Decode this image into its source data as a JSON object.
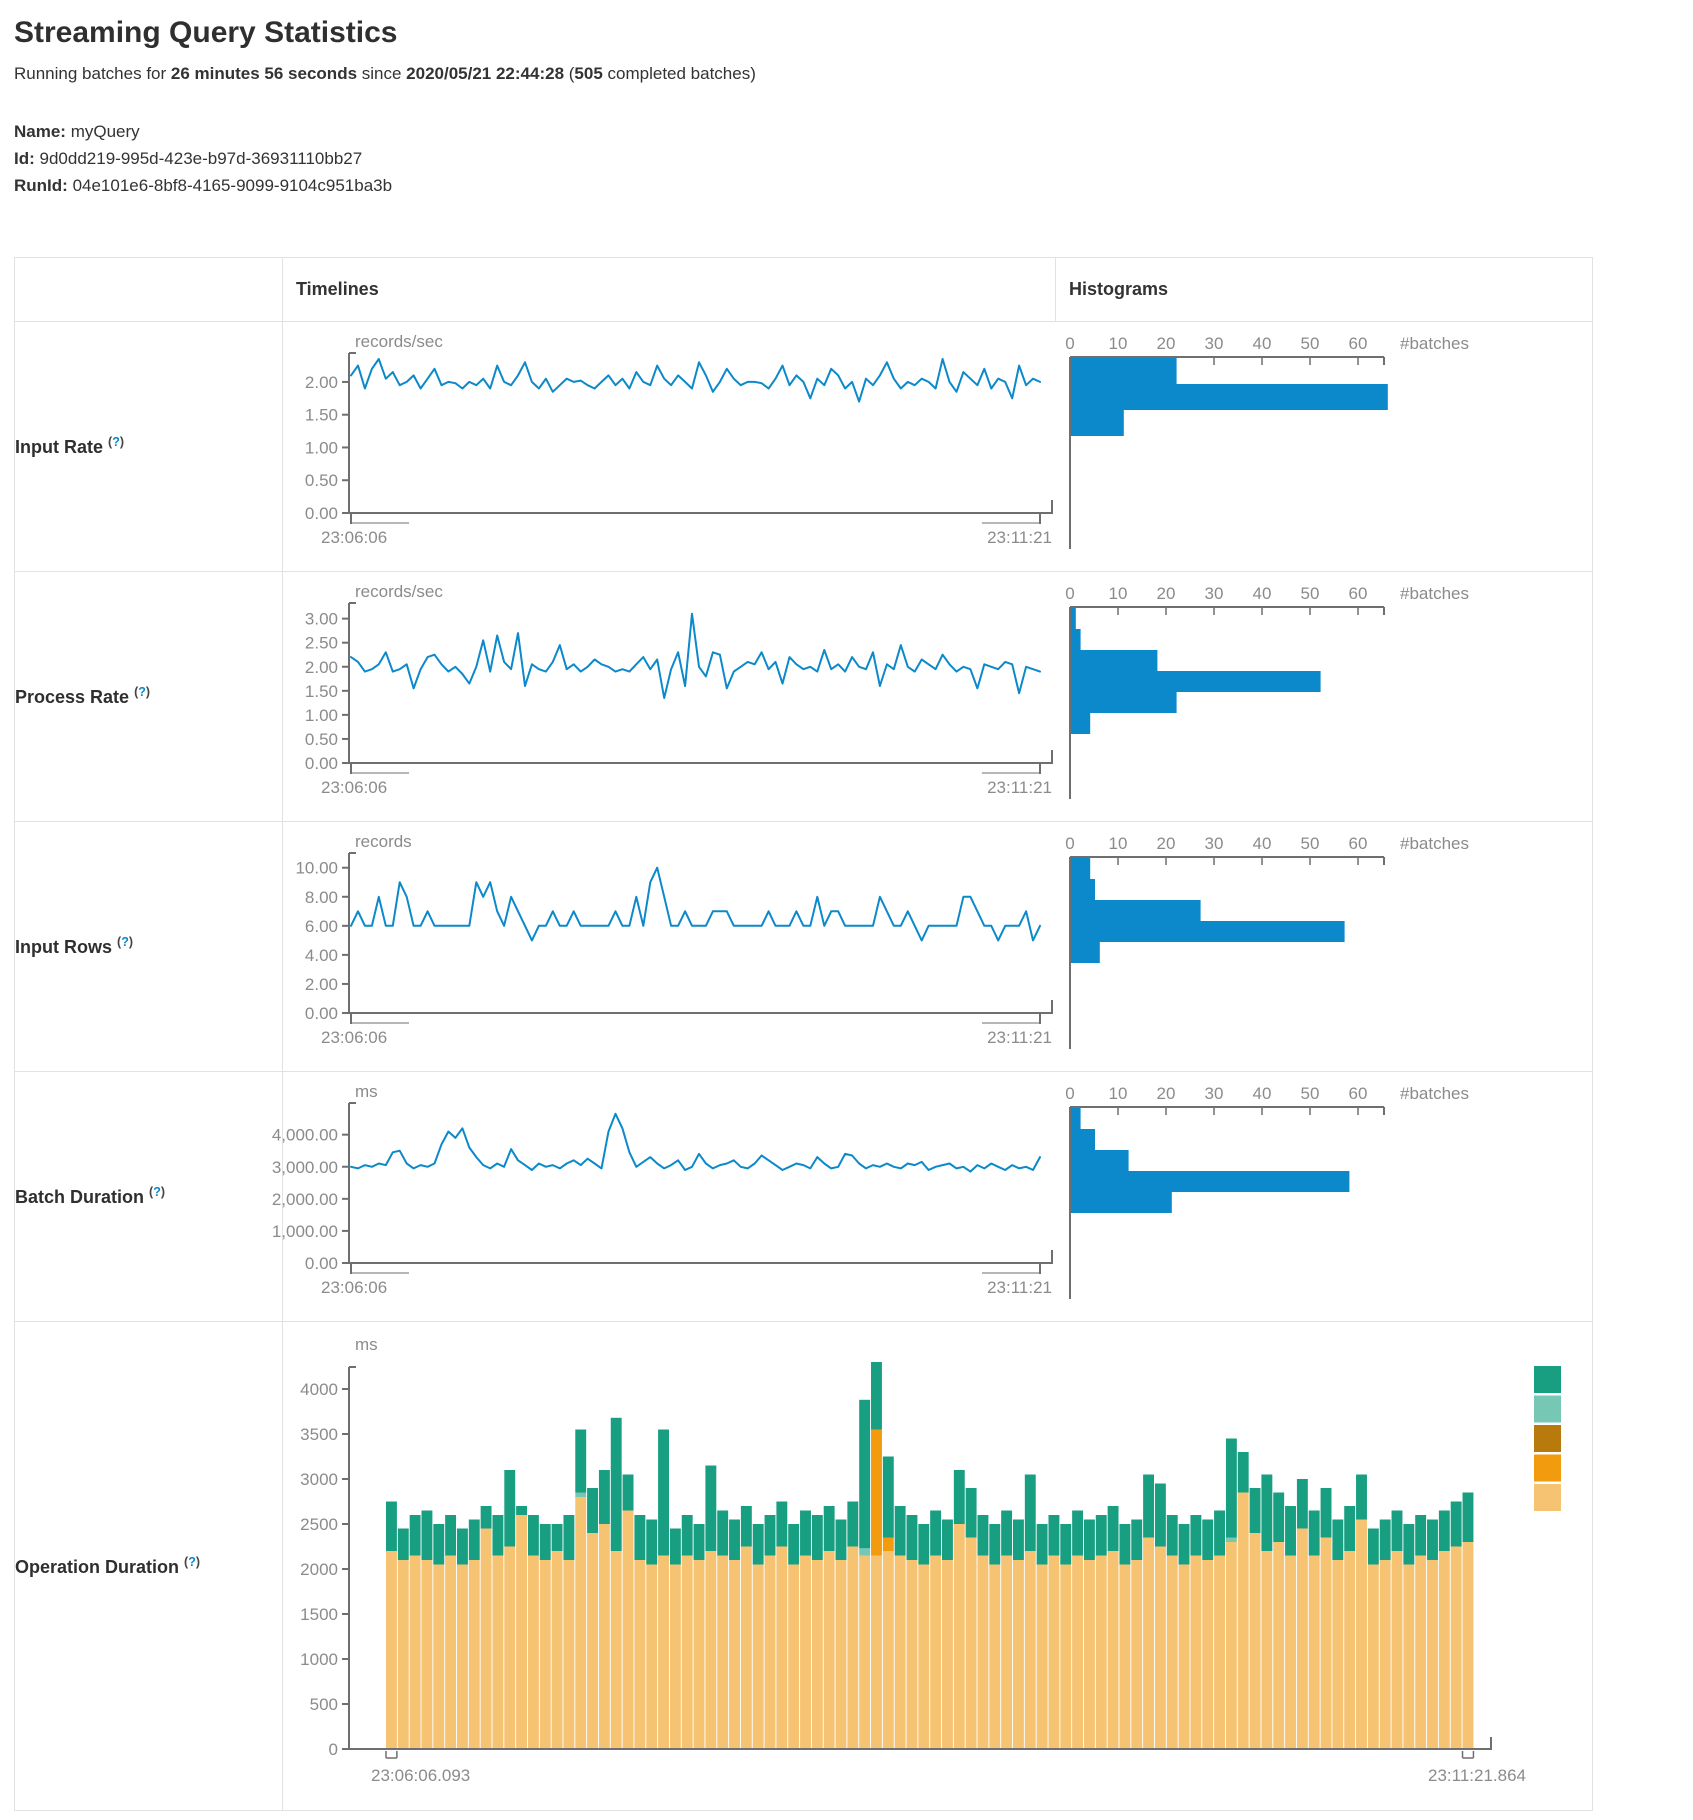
{
  "page": {
    "title": "Streaming Query Statistics",
    "subtitle_prefix": "Running batches for ",
    "duration": "26 minutes 56 seconds",
    "since_word": " since ",
    "start_time": "2020/05/21 22:44:28",
    "batches_open": " (",
    "completed_batches": "505",
    "batches_suffix": " completed batches)",
    "name_label": "Name:",
    "name_value": "myQuery",
    "id_label": "Id:",
    "id_value": "9d0dd219-995d-423e-b97d-36931110bb27",
    "runid_label": "RunId:",
    "runid_value": "04e101e6-8bf8-4165-9099-9104c951ba3b"
  },
  "table": {
    "col_timelines": "Timelines",
    "col_histograms": "Histograms",
    "help_open": "(",
    "help_q": "?",
    "help_close": ")"
  },
  "colors": {
    "line_blue": "#0b89ca",
    "hist_blue": "#0b89ca",
    "teal": "#189e81",
    "light_teal": "#76c7b4",
    "dark_orange": "#b8790d",
    "orange": "#f29b0f",
    "tan": "#f6c373",
    "axis": "#6f6f6f",
    "tick_text": "#8b8b8b"
  },
  "chart_data": [
    {
      "row": "Input Rate",
      "timeline": {
        "type": "line",
        "unit": "records/sec",
        "ymax": 2.35,
        "ytick_values": [
          2,
          1.5,
          1,
          0.5,
          0
        ],
        "ytick_labels": [
          "2.00",
          "1.50",
          "1.00",
          "0.50",
          "0.00"
        ],
        "x_start": "23:06:06",
        "x_end": "23:11:21",
        "values": [
          2.1,
          2.25,
          1.9,
          2.2,
          2.35,
          2.05,
          2.15,
          1.95,
          2.0,
          2.1,
          1.9,
          2.05,
          2.2,
          1.95,
          2.0,
          1.98,
          1.9,
          2.0,
          1.95,
          2.05,
          1.9,
          2.25,
          2.0,
          1.95,
          2.1,
          2.3,
          2.0,
          1.9,
          2.05,
          1.85,
          1.95,
          2.05,
          2.0,
          2.02,
          1.95,
          1.9,
          2.0,
          2.1,
          1.95,
          2.05,
          1.9,
          2.15,
          2.0,
          1.95,
          2.25,
          2.05,
          1.95,
          2.1,
          2.0,
          1.9,
          2.3,
          2.1,
          1.85,
          2.0,
          2.2,
          2.05,
          1.95,
          2.0,
          2.0,
          1.98,
          1.9,
          2.05,
          2.25,
          1.95,
          2.1,
          2.0,
          1.75,
          2.05,
          1.95,
          2.2,
          2.1,
          1.9,
          2.0,
          1.7,
          2.05,
          1.95,
          2.1,
          2.3,
          2.05,
          1.9,
          2.0,
          1.95,
          2.05,
          2.0,
          1.9,
          2.35,
          2.0,
          1.85,
          2.15,
          2.05,
          1.95,
          2.2,
          1.9,
          2.05,
          2.0,
          1.75,
          2.25,
          1.95,
          2.05,
          2.0
        ]
      },
      "histogram": {
        "type": "bar",
        "unit": "#batches",
        "ticks": [
          0,
          10,
          20,
          30,
          40,
          50,
          60
        ],
        "bars": [
          22,
          66,
          11
        ]
      }
    },
    {
      "row": "Process Rate",
      "timeline": {
        "type": "line",
        "unit": "records/sec",
        "ymax": 3.2,
        "ytick_values": [
          3,
          2.5,
          2,
          1.5,
          1,
          0.5,
          0
        ],
        "ytick_labels": [
          "3.00",
          "2.50",
          "2.00",
          "1.50",
          "1.00",
          "0.50",
          "0.00"
        ],
        "x_start": "23:06:06",
        "x_end": "23:11:21",
        "values": [
          2.2,
          2.1,
          1.9,
          1.95,
          2.05,
          2.3,
          1.9,
          1.95,
          2.05,
          1.55,
          1.95,
          2.2,
          2.25,
          2.05,
          1.9,
          2.0,
          1.85,
          1.65,
          2.0,
          2.55,
          1.9,
          2.65,
          2.1,
          1.95,
          2.7,
          1.6,
          2.05,
          1.95,
          1.9,
          2.1,
          2.45,
          1.95,
          2.05,
          1.9,
          2.0,
          2.15,
          2.05,
          2.0,
          1.9,
          1.95,
          1.9,
          2.05,
          2.2,
          1.95,
          2.15,
          1.35,
          1.95,
          2.3,
          1.6,
          3.1,
          2.0,
          1.8,
          2.3,
          2.25,
          1.55,
          1.9,
          2.0,
          2.1,
          2.05,
          2.3,
          1.95,
          2.1,
          1.65,
          2.2,
          2.05,
          1.95,
          2.0,
          1.9,
          2.35,
          1.95,
          2.05,
          1.9,
          2.2,
          2.0,
          1.95,
          2.3,
          1.6,
          2.05,
          1.95,
          2.45,
          2.0,
          1.9,
          2.15,
          2.05,
          1.95,
          2.25,
          2.05,
          1.9,
          2.0,
          1.95,
          1.55,
          2.05,
          2.0,
          1.95,
          2.1,
          2.05,
          1.45,
          2.0,
          1.95,
          1.9
        ]
      },
      "histogram": {
        "type": "bar",
        "unit": "#batches",
        "ticks": [
          0,
          10,
          20,
          30,
          40,
          50,
          60
        ],
        "bars": [
          1,
          2,
          18,
          52,
          22,
          4
        ]
      }
    },
    {
      "row": "Input Rows",
      "timeline": {
        "type": "line",
        "unit": "records",
        "ymax": 10.6,
        "ytick_values": [
          10,
          8,
          6,
          4,
          2,
          0
        ],
        "ytick_labels": [
          "10.00",
          "8.00",
          "6.00",
          "4.00",
          "2.00",
          "0.00"
        ],
        "x_start": "23:06:06",
        "x_end": "23:11:21",
        "values": [
          6,
          7,
          6,
          6,
          8,
          6,
          6,
          9,
          8,
          6,
          6,
          7,
          6,
          6,
          6,
          6,
          6,
          6,
          9,
          8,
          9,
          7,
          6,
          8,
          7,
          6,
          5,
          6,
          6,
          7,
          6,
          6,
          7,
          6,
          6,
          6,
          6,
          6,
          7,
          6,
          6,
          8,
          6,
          9,
          10,
          8,
          6,
          6,
          7,
          6,
          6,
          6,
          7,
          7,
          7,
          6,
          6,
          6,
          6,
          6,
          7,
          6,
          6,
          6,
          7,
          6,
          6,
          8,
          6,
          7,
          7,
          6,
          6,
          6,
          6,
          6,
          8,
          7,
          6,
          6,
          7,
          6,
          5,
          6,
          6,
          6,
          6,
          6,
          8,
          8,
          7,
          6,
          6,
          5,
          6,
          6,
          6,
          7,
          5,
          6
        ]
      },
      "histogram": {
        "type": "bar",
        "unit": "#batches",
        "ticks": [
          0,
          10,
          20,
          30,
          40,
          50,
          60
        ],
        "bars": [
          4,
          5,
          27,
          57,
          6
        ]
      }
    },
    {
      "row": "Batch Duration",
      "timeline": {
        "type": "line",
        "unit": "ms",
        "ymax": 4800,
        "ytick_values": [
          4000,
          3000,
          2000,
          1000,
          0
        ],
        "ytick_labels": [
          "4,000.00",
          "3,000.00",
          "2,000.00",
          "1,000.00",
          "0.00"
        ],
        "x_start": "23:06:06",
        "x_end": "23:11:21",
        "values": [
          3000,
          2950,
          3050,
          3000,
          3100,
          3050,
          3450,
          3500,
          3100,
          2950,
          3050,
          3000,
          3100,
          3700,
          4100,
          3900,
          4200,
          3600,
          3300,
          3050,
          2950,
          3100,
          3000,
          3550,
          3200,
          3050,
          2900,
          3100,
          3000,
          3050,
          2950,
          3100,
          3200,
          3050,
          3250,
          3100,
          2950,
          4100,
          4650,
          4200,
          3450,
          3000,
          3150,
          3300,
          3100,
          2950,
          3050,
          3200,
          2900,
          3000,
          3400,
          3100,
          2950,
          3050,
          3100,
          3200,
          3000,
          2950,
          3100,
          3350,
          3200,
          3050,
          2900,
          3000,
          3100,
          3050,
          2950,
          3300,
          3100,
          2950,
          3000,
          3400,
          3350,
          3100,
          2950,
          3050,
          3000,
          3100,
          3000,
          2950,
          3100,
          3050,
          3150,
          2900,
          3000,
          3050,
          3100,
          2950,
          3000,
          2850,
          3050,
          2950,
          3100,
          3000,
          2900,
          3050,
          2950,
          3000,
          2900,
          3300
        ]
      },
      "histogram": {
        "type": "bar",
        "unit": "#batches",
        "ticks": [
          0,
          10,
          20,
          30,
          40,
          50,
          60
        ],
        "bars": [
          2,
          5,
          12,
          58,
          21
        ]
      }
    },
    {
      "row": "Operation Duration",
      "timeline": {
        "type": "stacked_bar",
        "unit": "ms",
        "ytick_values": [
          4000,
          3500,
          3000,
          2500,
          2000,
          1500,
          1000,
          500,
          0
        ],
        "ytick_labels": [
          "4000",
          "3500",
          "3000",
          "2500",
          "2000",
          "1500",
          "1000",
          "500",
          "0"
        ],
        "x_start": "23:06:06.093",
        "x_end": "23:11:21.864",
        "stack_order": [
          "tan",
          "orange",
          "light_teal",
          "teal"
        ],
        "legend": [
          "teal",
          "light_teal",
          "dark_orange",
          "orange",
          "tan"
        ],
        "bars": [
          [
            2200,
            0,
            0,
            550
          ],
          [
            2100,
            0,
            0,
            350
          ],
          [
            2150,
            0,
            0,
            450
          ],
          [
            2100,
            0,
            0,
            550
          ],
          [
            2050,
            0,
            0,
            450
          ],
          [
            2150,
            0,
            0,
            450
          ],
          [
            2050,
            0,
            0,
            400
          ],
          [
            2100,
            0,
            0,
            450
          ],
          [
            2450,
            0,
            0,
            250
          ],
          [
            2150,
            0,
            0,
            450
          ],
          [
            2250,
            0,
            0,
            850
          ],
          [
            2600,
            0,
            0,
            100
          ],
          [
            2150,
            0,
            0,
            450
          ],
          [
            2100,
            0,
            0,
            400
          ],
          [
            2200,
            0,
            0,
            300
          ],
          [
            2100,
            0,
            0,
            500
          ],
          [
            2800,
            0,
            50,
            700
          ],
          [
            2400,
            0,
            0,
            500
          ],
          [
            2500,
            0,
            0,
            600
          ],
          [
            2200,
            0,
            0,
            1480
          ],
          [
            2650,
            0,
            0,
            400
          ],
          [
            2100,
            0,
            0,
            500
          ],
          [
            2050,
            0,
            0,
            500
          ],
          [
            2150,
            0,
            0,
            1400
          ],
          [
            2050,
            0,
            0,
            400
          ],
          [
            2150,
            0,
            0,
            450
          ],
          [
            2100,
            0,
            0,
            400
          ],
          [
            2200,
            0,
            0,
            950
          ],
          [
            2150,
            0,
            0,
            500
          ],
          [
            2100,
            0,
            0,
            450
          ],
          [
            2250,
            0,
            0,
            450
          ],
          [
            2050,
            0,
            0,
            450
          ],
          [
            2150,
            0,
            0,
            450
          ],
          [
            2250,
            0,
            0,
            500
          ],
          [
            2050,
            0,
            0,
            450
          ],
          [
            2150,
            0,
            0,
            500
          ],
          [
            2100,
            0,
            0,
            500
          ],
          [
            2200,
            0,
            0,
            500
          ],
          [
            2100,
            0,
            0,
            450
          ],
          [
            2250,
            0,
            0,
            500
          ],
          [
            2150,
            0,
            80,
            1650
          ],
          [
            2150,
            1400,
            0,
            750
          ],
          [
            2200,
            150,
            0,
            900
          ],
          [
            2150,
            0,
            0,
            550
          ],
          [
            2100,
            0,
            0,
            500
          ],
          [
            2050,
            0,
            0,
            450
          ],
          [
            2150,
            0,
            0,
            500
          ],
          [
            2100,
            0,
            0,
            450
          ],
          [
            2500,
            0,
            0,
            600
          ],
          [
            2350,
            0,
            0,
            550
          ],
          [
            2150,
            0,
            0,
            450
          ],
          [
            2050,
            0,
            0,
            450
          ],
          [
            2150,
            0,
            0,
            500
          ],
          [
            2100,
            0,
            0,
            450
          ],
          [
            2200,
            0,
            0,
            850
          ],
          [
            2050,
            0,
            0,
            450
          ],
          [
            2150,
            0,
            0,
            450
          ],
          [
            2050,
            0,
            0,
            450
          ],
          [
            2150,
            0,
            0,
            500
          ],
          [
            2100,
            0,
            0,
            450
          ],
          [
            2150,
            0,
            0,
            450
          ],
          [
            2200,
            0,
            0,
            500
          ],
          [
            2050,
            0,
            0,
            450
          ],
          [
            2100,
            0,
            0,
            450
          ],
          [
            2350,
            0,
            0,
            700
          ],
          [
            2250,
            0,
            0,
            700
          ],
          [
            2150,
            0,
            0,
            450
          ],
          [
            2050,
            0,
            0,
            450
          ],
          [
            2150,
            0,
            0,
            450
          ],
          [
            2100,
            0,
            0,
            450
          ],
          [
            2150,
            0,
            0,
            500
          ],
          [
            2300,
            0,
            50,
            1100
          ],
          [
            2850,
            0,
            0,
            450
          ],
          [
            2400,
            0,
            0,
            500
          ],
          [
            2200,
            0,
            0,
            850
          ],
          [
            2300,
            0,
            0,
            550
          ],
          [
            2150,
            0,
            0,
            550
          ],
          [
            2450,
            0,
            0,
            550
          ],
          [
            2150,
            0,
            0,
            500
          ],
          [
            2350,
            0,
            0,
            550
          ],
          [
            2100,
            0,
            0,
            450
          ],
          [
            2200,
            0,
            0,
            500
          ],
          [
            2550,
            0,
            0,
            500
          ],
          [
            2050,
            0,
            0,
            400
          ],
          [
            2100,
            0,
            0,
            450
          ],
          [
            2200,
            0,
            0,
            450
          ],
          [
            2050,
            0,
            0,
            450
          ],
          [
            2150,
            0,
            0,
            450
          ],
          [
            2100,
            0,
            0,
            450
          ],
          [
            2200,
            0,
            0,
            450
          ],
          [
            2250,
            0,
            0,
            500
          ],
          [
            2300,
            0,
            0,
            550
          ]
        ]
      }
    }
  ]
}
